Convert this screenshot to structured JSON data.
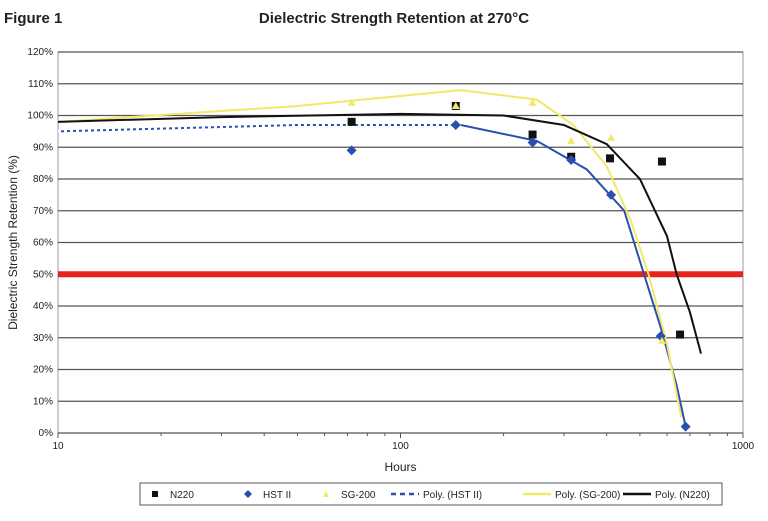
{
  "figure_label": "Figure 1",
  "chart_data": {
    "type": "scatter",
    "title": "Dielectric Strength Retention at 270°C",
    "xlabel": "Hours",
    "ylabel": "Dielectric Strength Retention (%)",
    "xscale": "log",
    "xlim": [
      10,
      1000
    ],
    "ylim": [
      0,
      120
    ],
    "xticks": [
      "10",
      "100",
      "1000"
    ],
    "yticks": [
      "0%",
      "10%",
      "20%",
      "30%",
      "40%",
      "50%",
      "60%",
      "70%",
      "80%",
      "90%",
      "100%",
      "110%",
      "120%"
    ],
    "grid": "horizontal",
    "legend_position": "bottom",
    "threshold": {
      "y": 50,
      "color": "#e8231c"
    },
    "series": [
      {
        "name": "N220",
        "marker": "square",
        "color": "#111111",
        "x": [
          72,
          145,
          243,
          315,
          409,
          580,
          655
        ],
        "y": [
          98,
          103,
          94,
          87,
          86.5,
          85.5,
          31
        ]
      },
      {
        "name": "HST II",
        "marker": "diamond",
        "color": "#2a4fb0",
        "x": [
          72,
          145,
          243,
          315,
          412,
          575,
          680
        ],
        "y": [
          89,
          97,
          91.5,
          86,
          75,
          30.5,
          2
        ]
      },
      {
        "name": "SG-200",
        "marker": "triangle",
        "color": "#f2e86a",
        "x": [
          72,
          145,
          243,
          315,
          412,
          580
        ],
        "y": [
          104,
          103,
          104,
          92,
          93,
          29
        ]
      }
    ],
    "trendlines": [
      {
        "name": "Poly. (HST II)",
        "color": "#2a4fb0",
        "style": "dashed-then-solid",
        "x": [
          10,
          50,
          150,
          250,
          350,
          450,
          514,
          580,
          640,
          680
        ],
        "y": [
          95,
          97,
          97,
          92,
          83,
          70,
          50,
          32,
          15,
          2
        ]
      },
      {
        "name": "Poly. (SG-200)",
        "color": "#f2e86a",
        "style": "solid",
        "x": [
          10,
          50,
          150,
          250,
          320,
          400,
          470,
          530,
          600,
          660
        ],
        "y": [
          98,
          103,
          108,
          105,
          97,
          84,
          67,
          50,
          28,
          5
        ]
      },
      {
        "name": "Poly. (N220)",
        "color": "#111111",
        "style": "solid",
        "x": [
          10,
          30,
          100,
          200,
          300,
          400,
          500,
          600,
          640,
          700,
          754
        ],
        "y": [
          98,
          99.5,
          100.5,
          100,
          97,
          91,
          80,
          62,
          50,
          38,
          25
        ]
      }
    ]
  }
}
